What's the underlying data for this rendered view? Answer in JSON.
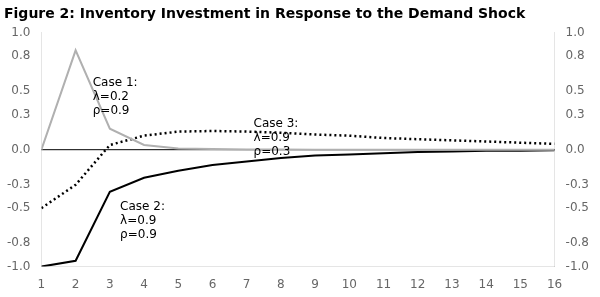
{
  "chart_data": {
    "type": "line",
    "title": "Figure 2: Inventory Investment in Response to the Demand Shock",
    "x": [
      1,
      2,
      3,
      4,
      5,
      6,
      7,
      8,
      9,
      10,
      11,
      12,
      13,
      14,
      15,
      16
    ],
    "xlim": [
      1,
      16
    ],
    "xticks": [
      1,
      2,
      3,
      4,
      5,
      6,
      7,
      8,
      9,
      10,
      11,
      12,
      13,
      14,
      15,
      16
    ],
    "ylim": [
      -1.0,
      1.0
    ],
    "yticks": [
      {
        "value": -1.0,
        "label": "-1.0"
      },
      -0.8,
      -0.5,
      -0.3,
      {
        "value": 0.0,
        "label": "0.0"
      },
      0.3,
      0.5,
      0.8,
      {
        "value": 1.0,
        "label": "1.0"
      }
    ],
    "y2lim": [
      -1.0,
      1.0
    ],
    "y2ticks": [
      {
        "value": -1.0,
        "label": "-1.0"
      },
      -0.8,
      -0.5,
      -0.3,
      {
        "value": 0.0,
        "label": "0.0"
      },
      0.3,
      0.5,
      0.8,
      {
        "value": 1.0,
        "label": "1.0"
      }
    ],
    "grid": false,
    "series": [
      {
        "color": "#b0b0b0",
        "line_style": "solid",
        "values": [
          0.0,
          0.85,
          0.18,
          0.04,
          0.01,
          0.005,
          0.002,
          0.001,
          0.0,
          0.0,
          0.0,
          0.0,
          0.0,
          0.0,
          0.0,
          0.0
        ]
      },
      {
        "color": "#000000",
        "line_style": "solid",
        "values": [
          -1.0,
          -0.95,
          -0.36,
          -0.24,
          -0.18,
          -0.13,
          -0.1,
          -0.07,
          -0.05,
          -0.04,
          -0.03,
          -0.02,
          -0.015,
          -0.01,
          -0.008,
          -0.005
        ]
      },
      {
        "color": "#000000",
        "line_style": "dotted",
        "values": [
          -0.5,
          -0.3,
          0.04,
          0.12,
          0.155,
          0.16,
          0.155,
          0.145,
          0.13,
          0.12,
          0.1,
          0.09,
          0.08,
          0.07,
          0.06,
          0.05
        ]
      }
    ],
    "annotations": [
      {
        "text": "Case 1:\nλ=0.2\nρ=0.9",
        "x": 2.5,
        "y": 0.62
      },
      {
        "text": "Case 2:\nλ=0.9\nρ=0.9",
        "x": 3.3,
        "y": -0.44
      },
      {
        "text": "Case 3:\nλ=0.9\nρ=0.3",
        "x": 7.2,
        "y": 0.27
      }
    ],
    "hlines": [
      {
        "y": 0,
        "color": "#000000"
      }
    ]
  }
}
